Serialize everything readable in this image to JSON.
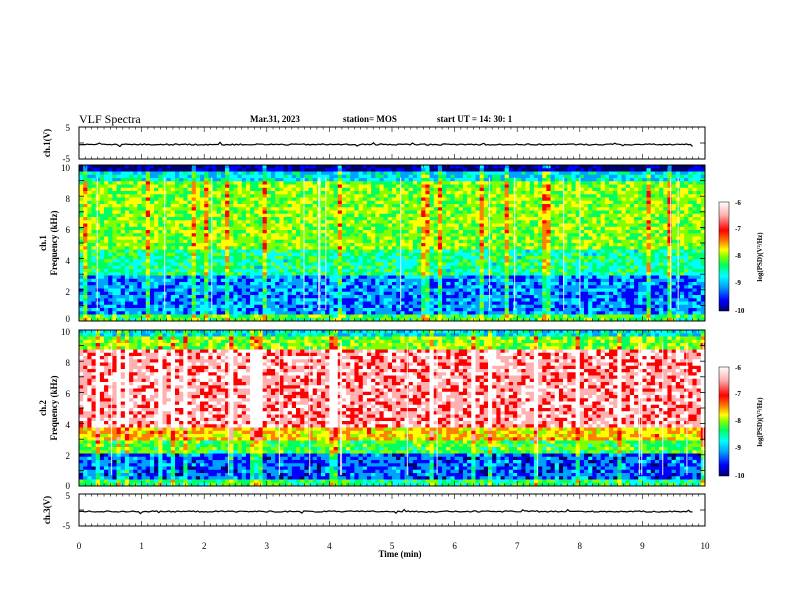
{
  "header": {
    "title": "VLF Spectra",
    "date": "Mar.31, 2023",
    "station": "station= MOS",
    "start": "start  UT =   14: 30: 1"
  },
  "chart_data": [
    {
      "type": "line",
      "panel": "ch.1 voltage",
      "ylabel": "ch.1(V)",
      "ylim": [
        -5,
        5
      ],
      "yticks": [
        "5",
        "-5"
      ],
      "xlim": [
        0,
        10
      ],
      "series": [
        {
          "values_mean": 0
        }
      ]
    },
    {
      "type": "heatmap",
      "panel": "ch.1 spectrogram",
      "ylabel": "ch.1",
      "ylabel2": "Frequency (kHz)",
      "xlim": [
        0,
        10
      ],
      "ylim": [
        0,
        10
      ],
      "yticks": [
        "0",
        "2",
        "4",
        "6",
        "8",
        "10"
      ],
      "colorbar": {
        "label": "log(PSD)(V²/Hz)",
        "range": [
          -10,
          -6
        ],
        "ticks": [
          "-6",
          "-7",
          "-8",
          "-9",
          "-10"
        ]
      }
    },
    {
      "type": "heatmap",
      "panel": "ch.2 spectrogram",
      "ylabel": "ch.2",
      "ylabel2": "Frequency (kHz)",
      "xlim": [
        0,
        10
      ],
      "ylim": [
        0,
        10
      ],
      "yticks": [
        "0",
        "2",
        "4",
        "6",
        "8",
        "10"
      ],
      "colorbar": {
        "label": "log(PSD)(V²/Hz)",
        "range": [
          -10,
          -6
        ],
        "ticks": [
          "-6",
          "-7",
          "-8",
          "-9",
          "-10"
        ]
      }
    },
    {
      "type": "line",
      "panel": "ch.3 voltage",
      "ylabel": "ch.3(V)",
      "ylim": [
        -5,
        5
      ],
      "yticks": [
        "5",
        "-5"
      ],
      "xlim": [
        0,
        10
      ],
      "xlabel": "Time (min)",
      "xticks": [
        "0",
        "1",
        "2",
        "3",
        "4",
        "5",
        "6",
        "7",
        "8",
        "9",
        "10"
      ]
    }
  ],
  "colors": {
    "scale": [
      "#00006e",
      "#0000ff",
      "#00a0ff",
      "#00ffff",
      "#00ff60",
      "#80ff00",
      "#ffff00",
      "#ff8000",
      "#ff0000",
      "#ffb0b0",
      "#ffffff"
    ]
  }
}
